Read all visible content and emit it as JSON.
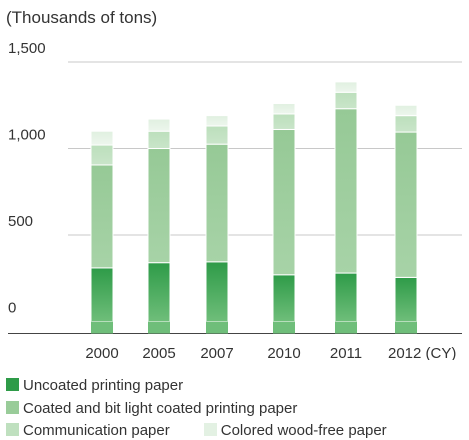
{
  "unit_label": "(Thousands of tons)",
  "chart_data": {
    "type": "bar",
    "stacked": true,
    "categories": [
      "2000",
      "2005",
      "2007",
      "2010",
      "2011",
      "2012 (CY)"
    ],
    "ylim": [
      0,
      1500
    ],
    "yticks": [
      0,
      500,
      "1,000",
      "1,500"
    ],
    "ytick_values": [
      0,
      500,
      1000,
      1500
    ],
    "grid": true,
    "legend_position": "bottom",
    "series": [
      {
        "name": "Uncoated printing paper",
        "color": "#2e9b48",
        "values": [
          310,
          340,
          345,
          270,
          280,
          255
        ]
      },
      {
        "name": "Coated and bit light coated printing paper",
        "color": "#99cc99",
        "values": [
          595,
          660,
          680,
          840,
          950,
          840
        ]
      },
      {
        "name": "Communication paper",
        "color": "#bfe0bf",
        "values": [
          115,
          100,
          105,
          90,
          95,
          95
        ]
      },
      {
        "name": "Colored wood-free paper",
        "color": "#e3f1e3",
        "values": [
          80,
          70,
          60,
          60,
          60,
          60
        ]
      }
    ]
  }
}
